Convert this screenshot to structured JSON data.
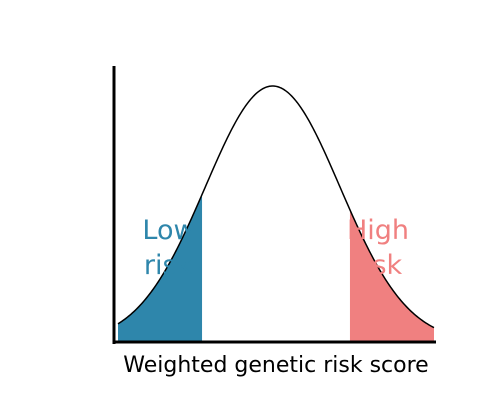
{
  "chart_data": {
    "type": "area",
    "title": "",
    "xlabel": "Weighted genetic risk score",
    "ylabel": "",
    "distribution": "normal",
    "mean": 0,
    "sd": 1,
    "xlim": [
      -2.3,
      2.4
    ],
    "ylim": [
      0,
      1
    ],
    "tails": [
      {
        "name": "low",
        "range": [
          -2.3,
          -1.05
        ]
      },
      {
        "name": "high",
        "range": [
          1.15,
          2.4
        ]
      }
    ],
    "annotations": {
      "low": {
        "lines": [
          "Low",
          "risk"
        ],
        "color": "#2E86AB"
      },
      "high": {
        "lines": [
          "High",
          "risk"
        ],
        "color": "#F08080"
      }
    },
    "grid": false
  }
}
